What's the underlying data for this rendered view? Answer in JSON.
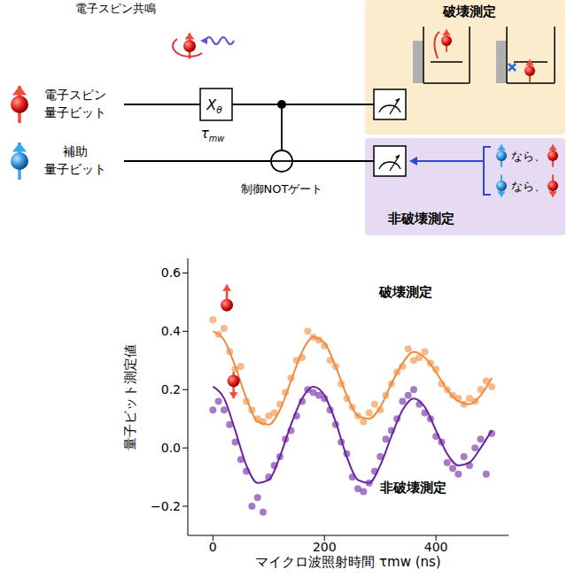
{
  "diagram": {
    "resonance": "電子スピン共鳴",
    "qubit1": [
      "電子スピン",
      "量子ビット"
    ],
    "qubit2": [
      "補助",
      "量子ビット"
    ],
    "gate": "Xθ",
    "gate_time": "τmw",
    "cnot": "制御NOTゲート",
    "destructive": "破壊測定",
    "nondestructive": "非破壊測定",
    "condition": [
      "なら、",
      "なら、"
    ]
  },
  "chart_data": {
    "type": "scatter",
    "xlabel": "マイクロ波照射時間 τmw (ns)",
    "ylabel": "量子ビット測定値",
    "xlim": [
      -45,
      530
    ],
    "ylim": [
      -0.3,
      0.65
    ],
    "xticks": [
      0,
      200,
      400
    ],
    "yticks": [
      {
        "value": -0.2,
        "label": "−0.2"
      },
      {
        "value": 0,
        "label": "0.0"
      },
      0.2,
      0.4,
      0.6
    ],
    "marker": "circle",
    "line_style": "solid",
    "x": [
      0,
      10,
      20,
      30,
      40,
      50,
      60,
      70,
      80,
      90,
      100,
      110,
      120,
      130,
      140,
      150,
      160,
      170,
      180,
      190,
      200,
      210,
      220,
      230,
      240,
      250,
      260,
      270,
      280,
      290,
      300,
      310,
      320,
      330,
      340,
      350,
      360,
      370,
      380,
      390,
      400,
      410,
      420,
      430,
      440,
      450,
      460,
      470,
      480,
      490,
      500
    ],
    "fit_x": [
      0,
      20,
      40,
      60,
      80,
      100,
      120,
      140,
      160,
      180,
      200,
      220,
      240,
      260,
      280,
      300,
      320,
      340,
      360,
      380,
      400,
      420,
      440,
      460,
      480,
      500
    ],
    "series": [
      {
        "name": "破壊測定",
        "color": "#f28a3c",
        "values": [
          0.44,
          0.39,
          0.41,
          0.33,
          0.27,
          0.28,
          0.16,
          0.13,
          0.1,
          0.09,
          0.11,
          0.12,
          0.15,
          0.19,
          0.24,
          0.3,
          0.31,
          0.4,
          0.38,
          0.37,
          0.35,
          0.3,
          0.28,
          0.22,
          0.17,
          0.14,
          0.11,
          0.09,
          0.12,
          0.15,
          0.13,
          0.18,
          0.22,
          0.26,
          0.28,
          0.34,
          0.3,
          0.31,
          0.33,
          0.29,
          0.27,
          0.22,
          0.2,
          0.18,
          0.17,
          0.15,
          0.17,
          0.16,
          0.2,
          0.23,
          0.21
        ],
        "fit": [
          0.4,
          0.37,
          0.28,
          0.17,
          0.09,
          0.08,
          0.13,
          0.23,
          0.33,
          0.38,
          0.36,
          0.28,
          0.18,
          0.11,
          0.1,
          0.14,
          0.22,
          0.29,
          0.33,
          0.31,
          0.26,
          0.2,
          0.16,
          0.15,
          0.18,
          0.24
        ]
      },
      {
        "name": "非破壊測定",
        "color": "#6a22a0",
        "values": [
          0.13,
          0.16,
          0.13,
          0.08,
          0.02,
          -0.04,
          -0.08,
          -0.2,
          -0.17,
          -0.22,
          -0.1,
          -0.06,
          -0.03,
          0.03,
          0.06,
          0.11,
          0.16,
          0.2,
          0.19,
          0.18,
          0.17,
          0.13,
          0.08,
          0.02,
          -0.02,
          -0.1,
          -0.14,
          -0.15,
          -0.12,
          -0.08,
          -0.03,
          0.03,
          0.06,
          0.1,
          0.16,
          0.18,
          0.2,
          0.15,
          0.12,
          0.1,
          0.04,
          0.02,
          -0.05,
          -0.07,
          -0.09,
          -0.03,
          -0.06,
          0.0,
          0.03,
          -0.09,
          0.05
        ],
        "fit": [
          0.21,
          0.17,
          0.06,
          -0.06,
          -0.12,
          -0.11,
          -0.03,
          0.08,
          0.17,
          0.21,
          0.18,
          0.09,
          -0.03,
          -0.11,
          -0.12,
          -0.06,
          0.04,
          0.13,
          0.17,
          0.14,
          0.06,
          -0.02,
          -0.06,
          -0.05,
          0.0,
          0.06
        ]
      }
    ]
  }
}
